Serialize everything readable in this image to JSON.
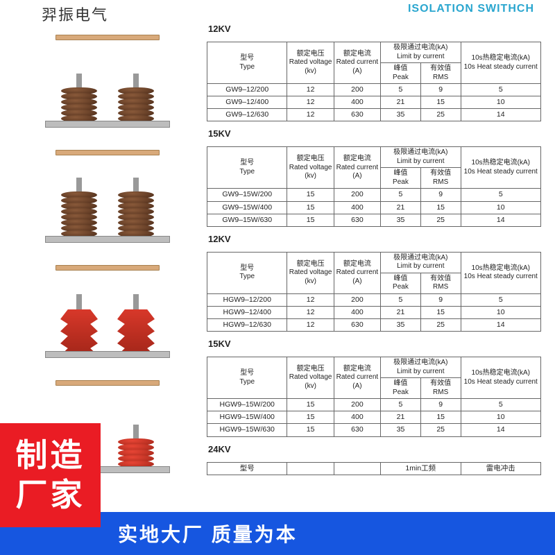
{
  "header": {
    "left_fragment": "羿振电气",
    "right_fragment": "ISOLATION SWITHCH"
  },
  "colors": {
    "accent_blue": "#2aa6cf",
    "footer_blue": "#1656e0",
    "badge_red": "#ea1c24",
    "border": "#666666",
    "brown_insulator": "#4a2a18",
    "red_insulator": "#d8382a"
  },
  "table_headers": {
    "type": "型号",
    "type_en": "Type",
    "voltage": "额定电压",
    "voltage_en": "Rated voltage",
    "voltage_unit": "(kv)",
    "current": "额定电流",
    "current_en": "Rated current",
    "current_unit": "(A)",
    "limit": "极限通过电流(kA)",
    "limit_en": "Limit by current",
    "peak": "峰值",
    "peak_en": "Peak",
    "rms": "有效值",
    "rms_en": "RMS",
    "heat": "10s热稳定电流(kA)",
    "heat_en": "10s Heat steady current"
  },
  "sections": [
    {
      "title": "12KV",
      "rows": [
        {
          "type": "GW9–12/200",
          "v": "12",
          "a": "200",
          "peak": "5",
          "rms": "9",
          "heat": "5"
        },
        {
          "type": "GW9–12/400",
          "v": "12",
          "a": "400",
          "peak": "21",
          "rms": "15",
          "heat": "10"
        },
        {
          "type": "GW9–12/630",
          "v": "12",
          "a": "630",
          "peak": "35",
          "rms": "25",
          "heat": "14"
        }
      ]
    },
    {
      "title": "15KV",
      "rows": [
        {
          "type": "GW9–15W/200",
          "v": "15",
          "a": "200",
          "peak": "5",
          "rms": "9",
          "heat": "5"
        },
        {
          "type": "GW9–15W/400",
          "v": "15",
          "a": "400",
          "peak": "21",
          "rms": "15",
          "heat": "10"
        },
        {
          "type": "GW9–15W/630",
          "v": "15",
          "a": "630",
          "peak": "35",
          "rms": "25",
          "heat": "14"
        }
      ]
    },
    {
      "title": "12KV",
      "rows": [
        {
          "type": "HGW9–12/200",
          "v": "12",
          "a": "200",
          "peak": "5",
          "rms": "9",
          "heat": "5"
        },
        {
          "type": "HGW9–12/400",
          "v": "12",
          "a": "400",
          "peak": "21",
          "rms": "15",
          "heat": "10"
        },
        {
          "type": "HGW9–12/630",
          "v": "12",
          "a": "630",
          "peak": "35",
          "rms": "25",
          "heat": "14"
        }
      ]
    },
    {
      "title": "15KV",
      "rows": [
        {
          "type": "HGW9–15W/200",
          "v": "15",
          "a": "200",
          "peak": "5",
          "rms": "9",
          "heat": "5"
        },
        {
          "type": "HGW9–15W/400",
          "v": "15",
          "a": "400",
          "peak": "21",
          "rms": "15",
          "heat": "10"
        },
        {
          "type": "HGW9–15W/630",
          "v": "15",
          "a": "630",
          "peak": "35",
          "rms": "25",
          "heat": "14"
        }
      ]
    }
  ],
  "last_section": {
    "title": "24KV",
    "hdr_type": "型号",
    "hdr_extra1": "1min工频",
    "hdr_extra2": "雷电冲击"
  },
  "products": [
    {
      "variant": "brown",
      "discs": 7
    },
    {
      "variant": "brown",
      "discs": 9
    },
    {
      "variant": "red_skirt",
      "discs": 0
    },
    {
      "variant": "red",
      "discs": 6
    }
  ],
  "badge": {
    "line1": "制造",
    "line2": "厂家"
  },
  "footer": "实地大厂  质量为本"
}
